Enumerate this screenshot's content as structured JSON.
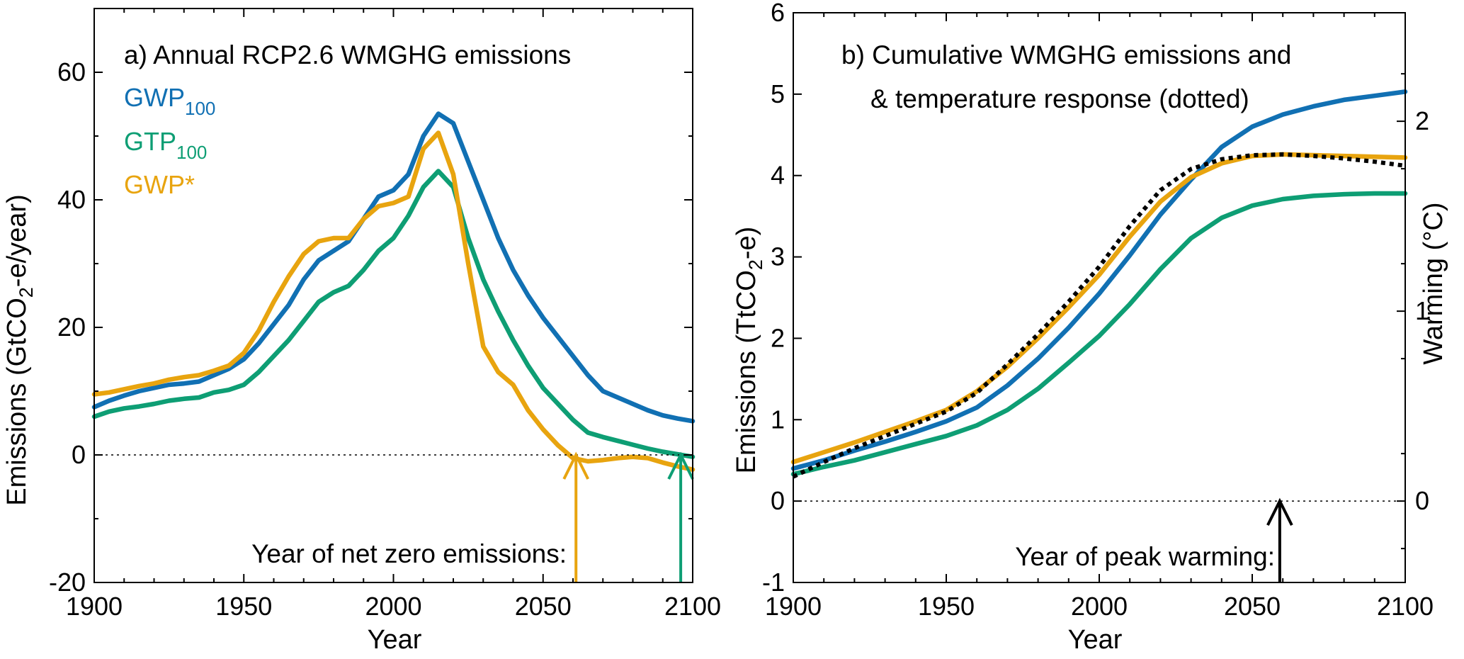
{
  "colors": {
    "gwp100": "#1170b3",
    "gtp100": "#0e9e74",
    "gwpstar": "#e8a40f",
    "temperature": "#000000",
    "axis": "#000000"
  },
  "chart_data": [
    {
      "type": "line",
      "title": "a) Annual RCP2.6 WMGHG emissions",
      "xlabel": "Year",
      "ylabel_main": "Emissions (GtCO",
      "ylabel_sub": "2",
      "ylabel_tail": "-e/year)",
      "xlim": [
        1900,
        2100
      ],
      "ylim": [
        -20,
        70
      ],
      "xticks": [
        1900,
        1950,
        2000,
        2050,
        2100
      ],
      "yticks": [
        -20,
        0,
        20,
        40,
        60
      ],
      "zero_line": true,
      "legend": [
        {
          "main": "GWP",
          "sub": "100",
          "color_key": "gwp100"
        },
        {
          "main": "GTP",
          "sub": "100",
          "color_key": "gtp100"
        },
        {
          "main": "GWP*",
          "sub": "",
          "color_key": "gwpstar"
        }
      ],
      "series": [
        {
          "color_key": "gwp100",
          "points": [
            [
              1900,
              7.5
            ],
            [
              1905,
              8.5
            ],
            [
              1910,
              9.3
            ],
            [
              1915,
              10
            ],
            [
              1920,
              10.5
            ],
            [
              1925,
              11
            ],
            [
              1930,
              11.2
            ],
            [
              1935,
              11.5
            ],
            [
              1940,
              12.5
            ],
            [
              1945,
              13.5
            ],
            [
              1950,
              15
            ],
            [
              1955,
              17.5
            ],
            [
              1960,
              20.5
            ],
            [
              1965,
              23.5
            ],
            [
              1970,
              27.5
            ],
            [
              1975,
              30.5
            ],
            [
              1980,
              32
            ],
            [
              1985,
              33.5
            ],
            [
              1990,
              37
            ],
            [
              1995,
              40.5
            ],
            [
              2000,
              41.5
            ],
            [
              2005,
              44
            ],
            [
              2010,
              50
            ],
            [
              2015,
              53.5
            ],
            [
              2020,
              52
            ],
            [
              2025,
              46
            ],
            [
              2030,
              40
            ],
            [
              2035,
              34
            ],
            [
              2040,
              29
            ],
            [
              2045,
              25
            ],
            [
              2050,
              21.5
            ],
            [
              2055,
              18.5
            ],
            [
              2060,
              15.5
            ],
            [
              2065,
              12.5
            ],
            [
              2070,
              10
            ],
            [
              2075,
              9
            ],
            [
              2080,
              8
            ],
            [
              2085,
              7
            ],
            [
              2090,
              6.2
            ],
            [
              2095,
              5.7
            ],
            [
              2100,
              5.3
            ]
          ]
        },
        {
          "color_key": "gtp100",
          "points": [
            [
              1900,
              6
            ],
            [
              1905,
              6.8
            ],
            [
              1910,
              7.3
            ],
            [
              1915,
              7.6
            ],
            [
              1920,
              8
            ],
            [
              1925,
              8.5
            ],
            [
              1930,
              8.8
            ],
            [
              1935,
              9
            ],
            [
              1940,
              9.8
            ],
            [
              1945,
              10.2
            ],
            [
              1950,
              11
            ],
            [
              1955,
              13
            ],
            [
              1960,
              15.5
            ],
            [
              1965,
              18
            ],
            [
              1970,
              21
            ],
            [
              1975,
              24
            ],
            [
              1980,
              25.5
            ],
            [
              1985,
              26.5
            ],
            [
              1990,
              29
            ],
            [
              1995,
              32
            ],
            [
              2000,
              34
            ],
            [
              2005,
              37.5
            ],
            [
              2010,
              42
            ],
            [
              2015,
              44.5
            ],
            [
              2020,
              42
            ],
            [
              2025,
              34
            ],
            [
              2030,
              27.5
            ],
            [
              2035,
              22.5
            ],
            [
              2040,
              18
            ],
            [
              2045,
              14
            ],
            [
              2050,
              10.5
            ],
            [
              2055,
              8
            ],
            [
              2060,
              5.5
            ],
            [
              2065,
              3.5
            ],
            [
              2070,
              2.8
            ],
            [
              2075,
              2.2
            ],
            [
              2080,
              1.6
            ],
            [
              2085,
              1
            ],
            [
              2090,
              0.5
            ],
            [
              2095,
              0.1
            ],
            [
              2100,
              -0.3
            ]
          ]
        },
        {
          "color_key": "gwpstar",
          "points": [
            [
              1900,
              9.5
            ],
            [
              1905,
              9.8
            ],
            [
              1910,
              10.3
            ],
            [
              1915,
              10.8
            ],
            [
              1920,
              11.2
            ],
            [
              1925,
              11.8
            ],
            [
              1930,
              12.2
            ],
            [
              1935,
              12.5
            ],
            [
              1940,
              13.2
            ],
            [
              1945,
              14
            ],
            [
              1950,
              16
            ],
            [
              1955,
              19.5
            ],
            [
              1960,
              24
            ],
            [
              1965,
              28
            ],
            [
              1970,
              31.5
            ],
            [
              1975,
              33.5
            ],
            [
              1980,
              34
            ],
            [
              1985,
              34
            ],
            [
              1990,
              37
            ],
            [
              1995,
              39
            ],
            [
              2000,
              39.5
            ],
            [
              2005,
              40.5
            ],
            [
              2010,
              48
            ],
            [
              2015,
              50.5
            ],
            [
              2020,
              44
            ],
            [
              2025,
              30
            ],
            [
              2030,
              17
            ],
            [
              2035,
              13
            ],
            [
              2040,
              11
            ],
            [
              2045,
              7
            ],
            [
              2050,
              4
            ],
            [
              2055,
              1.5
            ],
            [
              2060,
              -0.5
            ],
            [
              2065,
              -1
            ],
            [
              2070,
              -0.8
            ],
            [
              2075,
              -0.5
            ],
            [
              2080,
              -0.3
            ],
            [
              2085,
              -0.5
            ],
            [
              2090,
              -1.2
            ],
            [
              2095,
              -1.8
            ],
            [
              2100,
              -2.3
            ]
          ]
        }
      ],
      "annotation": {
        "text": "Year of net zero emissions:",
        "arrows": [
          {
            "year": 2061,
            "color_key": "gwpstar"
          },
          {
            "year": 2096,
            "color_key": "gtp100"
          }
        ]
      }
    },
    {
      "type": "line",
      "title_line1": "b) Cumulative WMGHG emissions and",
      "title_line2": "& temperature response (dotted)",
      "xlabel": "Year",
      "ylabel_main": "Emissions (TtCO",
      "ylabel_sub": "2",
      "ylabel_tail": "-e)",
      "y2label": "Warming (°C)",
      "xlim": [
        1900,
        2100
      ],
      "ylim": [
        -1,
        6
      ],
      "y2lim": [
        -0.4286,
        2.5714
      ],
      "xticks": [
        1900,
        1950,
        2000,
        2050,
        2100
      ],
      "yticks": [
        -1,
        0,
        1,
        2,
        3,
        4,
        5,
        6
      ],
      "y2ticks": [
        0,
        1,
        2
      ],
      "zero_line": true,
      "series": [
        {
          "color_key": "gwp100",
          "points": [
            [
              1900,
              0.4
            ],
            [
              1910,
              0.5
            ],
            [
              1920,
              0.62
            ],
            [
              1930,
              0.73
            ],
            [
              1940,
              0.85
            ],
            [
              1950,
              0.98
            ],
            [
              1960,
              1.15
            ],
            [
              1970,
              1.42
            ],
            [
              1980,
              1.75
            ],
            [
              1990,
              2.13
            ],
            [
              2000,
              2.55
            ],
            [
              2010,
              3.02
            ],
            [
              2020,
              3.52
            ],
            [
              2030,
              3.95
            ],
            [
              2040,
              4.35
            ],
            [
              2050,
              4.6
            ],
            [
              2060,
              4.75
            ],
            [
              2070,
              4.85
            ],
            [
              2080,
              4.93
            ],
            [
              2090,
              4.98
            ],
            [
              2100,
              5.03
            ]
          ]
        },
        {
          "color_key": "gtp100",
          "points": [
            [
              1900,
              0.33
            ],
            [
              1910,
              0.42
            ],
            [
              1920,
              0.5
            ],
            [
              1930,
              0.6
            ],
            [
              1940,
              0.7
            ],
            [
              1950,
              0.8
            ],
            [
              1960,
              0.93
            ],
            [
              1970,
              1.12
            ],
            [
              1980,
              1.38
            ],
            [
              1990,
              1.7
            ],
            [
              2000,
              2.03
            ],
            [
              2010,
              2.42
            ],
            [
              2020,
              2.85
            ],
            [
              2030,
              3.23
            ],
            [
              2040,
              3.48
            ],
            [
              2050,
              3.63
            ],
            [
              2060,
              3.71
            ],
            [
              2070,
              3.75
            ],
            [
              2080,
              3.77
            ],
            [
              2090,
              3.78
            ],
            [
              2100,
              3.78
            ]
          ]
        },
        {
          "color_key": "gwpstar",
          "points": [
            [
              1900,
              0.48
            ],
            [
              1910,
              0.6
            ],
            [
              1920,
              0.72
            ],
            [
              1930,
              0.85
            ],
            [
              1940,
              0.98
            ],
            [
              1950,
              1.12
            ],
            [
              1960,
              1.35
            ],
            [
              1970,
              1.65
            ],
            [
              1980,
              2
            ],
            [
              1990,
              2.38
            ],
            [
              2000,
              2.78
            ],
            [
              2010,
              3.25
            ],
            [
              2020,
              3.68
            ],
            [
              2030,
              3.98
            ],
            [
              2040,
              4.15
            ],
            [
              2050,
              4.24
            ],
            [
              2060,
              4.26
            ],
            [
              2070,
              4.25
            ],
            [
              2080,
              4.24
            ],
            [
              2090,
              4.23
            ],
            [
              2100,
              4.22
            ]
          ]
        },
        {
          "color_key": "temperature",
          "dotted": true,
          "points": [
            [
              1900,
              0.3
            ],
            [
              1910,
              0.48
            ],
            [
              1920,
              0.65
            ],
            [
              1930,
              0.8
            ],
            [
              1940,
              0.95
            ],
            [
              1950,
              1.1
            ],
            [
              1960,
              1.33
            ],
            [
              1970,
              1.68
            ],
            [
              1980,
              2.05
            ],
            [
              1990,
              2.45
            ],
            [
              2000,
              2.88
            ],
            [
              2010,
              3.38
            ],
            [
              2020,
              3.82
            ],
            [
              2030,
              4.08
            ],
            [
              2040,
              4.2
            ],
            [
              2050,
              4.25
            ],
            [
              2060,
              4.26
            ],
            [
              2070,
              4.24
            ],
            [
              2080,
              4.21
            ],
            [
              2090,
              4.17
            ],
            [
              2100,
              4.12
            ]
          ]
        }
      ],
      "annotation": {
        "text": "Year of peak warming:",
        "arrows": [
          {
            "year": 2059,
            "color_key": "temperature"
          }
        ]
      }
    }
  ]
}
